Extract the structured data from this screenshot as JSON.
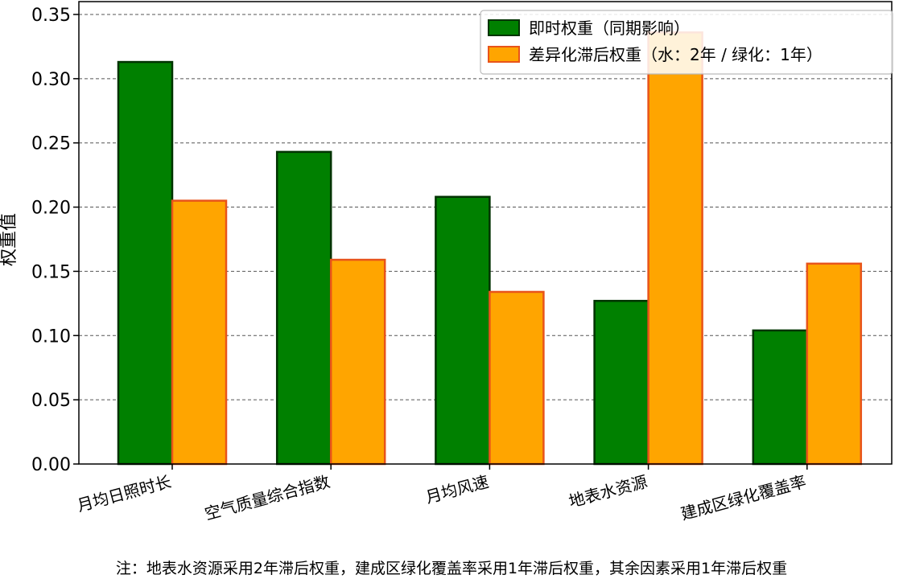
{
  "chart_data": {
    "type": "bar",
    "categories": [
      "月均日照时长",
      "空气质量综合指数",
      "月均风速",
      "地表水资源",
      "建成区绿化覆盖率"
    ],
    "series": [
      {
        "name": "即时权重（同期影响）",
        "values": [
          0.313,
          0.243,
          0.208,
          0.127,
          0.104
        ],
        "color": "#008000",
        "edge_color": "#003300"
      },
      {
        "name": "差异化滞后权重（水：2年 / 绿化：1年）",
        "values": [
          0.205,
          0.159,
          0.134,
          0.336,
          0.156
        ],
        "color": "#FFA500",
        "edge_color": "#E8541A"
      }
    ],
    "xlabel": "",
    "ylabel": "权重值",
    "ylim": [
      0,
      0.36
    ],
    "yticks": [
      "0.00",
      "0.05",
      "0.10",
      "0.15",
      "0.20",
      "0.25",
      "0.30",
      "0.35"
    ],
    "grid": "y-dashed",
    "legend_position": "top-right",
    "footnote": "注：地表水资源采用2年滞后权重，建成区绿化覆盖率采用1年滞后权重，其余因素采用1年滞后权重"
  }
}
